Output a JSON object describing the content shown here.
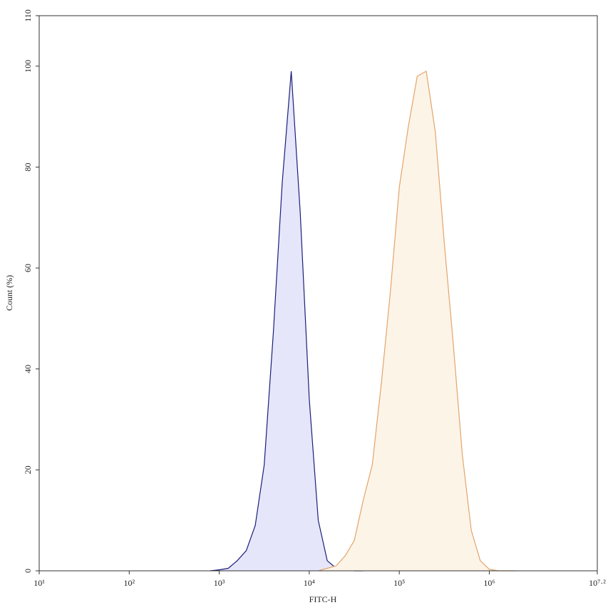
{
  "chart_data": {
    "type": "area",
    "xlabel": "FITC-H",
    "ylabel": "Count (%)",
    "xscale": "log",
    "xlim": [
      10,
      15848932
    ],
    "xticks": [
      {
        "value": 10,
        "label": "10¹"
      },
      {
        "value": 100,
        "label": "10²"
      },
      {
        "value": 1000,
        "label": "10³"
      },
      {
        "value": 10000,
        "label": "10⁴"
      },
      {
        "value": 100000,
        "label": "10⁵"
      },
      {
        "value": 1000000,
        "label": "10⁶"
      },
      {
        "value": 15848932,
        "label": "10⁷·²"
      }
    ],
    "ylim": [
      0,
      110
    ],
    "yticks": [
      0,
      20,
      40,
      60,
      80,
      100,
      110
    ],
    "x": [
      794,
      1000,
      1259,
      1585,
      1995,
      2512,
      3162,
      3981,
      5012,
      6310,
      7943,
      10000,
      12589,
      15849,
      19953,
      25119,
      31623,
      39811,
      50119,
      63096,
      79433,
      100000,
      125893,
      158489,
      199526,
      251189,
      316228,
      398107,
      501187,
      630957,
      794328,
      1000000,
      1258925,
      1584893,
      1995262
    ],
    "series": [
      {
        "color": "#1a1f78",
        "fill": "#e6e6fb",
        "values": [
          0,
          0.2,
          0.5,
          2,
          4,
          9,
          21,
          47,
          77,
          99,
          71,
          34,
          10,
          2,
          0.5,
          0.2,
          0,
          0,
          null,
          null,
          null,
          null,
          null,
          null,
          null,
          null,
          null,
          null,
          null,
          null,
          null,
          null,
          null,
          null,
          null
        ]
      },
      {
        "color": "#e3a469",
        "fill": "#fdf4e8",
        "values": [
          null,
          null,
          null,
          null,
          null,
          null,
          null,
          null,
          null,
          null,
          null,
          null,
          0,
          0.5,
          1,
          3,
          6,
          14,
          21,
          37,
          55,
          76,
          88,
          98,
          99,
          87,
          65,
          45,
          23,
          8,
          2,
          0.3,
          0,
          0,
          0
        ]
      }
    ]
  }
}
